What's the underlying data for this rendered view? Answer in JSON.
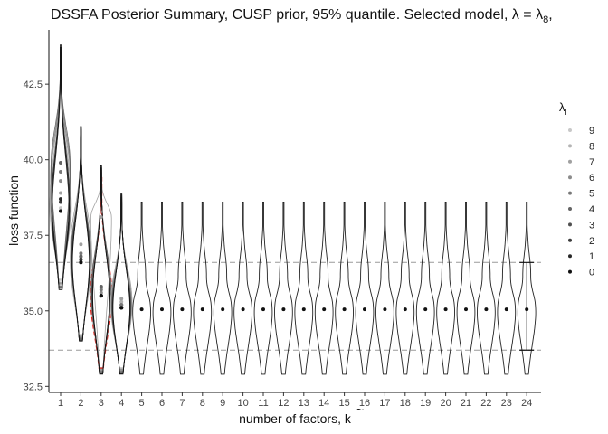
{
  "chart_data": {
    "type": "violin",
    "title": "DSSFA Posterior Summary, CUSP prior, 95% quantile. Selected model, λ = λ",
    "title_subscript": "8",
    "title_tail": ",",
    "xlabel": "number of factors, k",
    "xlabel_accent": "~",
    "ylabel": "loss function",
    "x_ticks": [
      "1",
      "2",
      "3",
      "4",
      "5",
      "6",
      "7",
      "8",
      "9",
      "10",
      "11",
      "12",
      "13",
      "14",
      "15",
      "16",
      "17",
      "18",
      "19",
      "20",
      "21",
      "22",
      "23",
      "24"
    ],
    "y_ticks": [
      32.5,
      35.0,
      37.5,
      40.0,
      42.5
    ],
    "y_tick_labels": [
      "32.5",
      "35.0",
      "37.5",
      "40.0",
      "42.5"
    ],
    "ylim": [
      32.3,
      44.3
    ],
    "reference_lines": [
      36.6,
      33.7
    ],
    "legend": {
      "title": "λ",
      "title_subscript": "l",
      "entries": [
        "9",
        "8",
        "7",
        "6",
        "5",
        "4",
        "3",
        "2",
        "1",
        "0"
      ],
      "colors": [
        "#c8c8c8",
        "#b4b4b4",
        "#a0a0a0",
        "#8c8c8c",
        "#787878",
        "#646464",
        "#505050",
        "#3c3c3c",
        "#282828",
        "#101010"
      ]
    },
    "highlight": {
      "lambda": "8",
      "k": "3",
      "color": "#e0201a"
    },
    "points": {
      "1": [
        38.4,
        38.6,
        38.9,
        39.3,
        39.6,
        39.9,
        38.3,
        38.6,
        38.7,
        38.3
      ],
      "2": [
        36.7,
        36.6,
        37.2,
        36.8,
        36.9,
        36.8,
        36.7,
        36.7,
        36.6,
        36.6
      ],
      "3": [
        35.5,
        35.5,
        38.1,
        35.6,
        35.7,
        35.8,
        35.5,
        35.5,
        35.5,
        35.5
      ],
      "4": [
        35.2,
        35.3,
        35.4,
        35.2,
        35.2,
        35.1,
        35.1,
        35.1,
        35.1,
        35.1
      ],
      "rest": 35.05
    },
    "violins": {
      "1": {
        "min": 35.7,
        "max": 43.8,
        "center": 38.6
      },
      "2": {
        "min": 34.0,
        "max": 41.1,
        "center": 36.7
      },
      "3": {
        "min": 32.9,
        "max": 39.8,
        "center": 35.5
      },
      "4": {
        "min": 32.9,
        "max": 38.9,
        "center": 35.2
      },
      "rest": {
        "min": 32.9,
        "max": 38.6,
        "center": 35.05
      }
    }
  }
}
